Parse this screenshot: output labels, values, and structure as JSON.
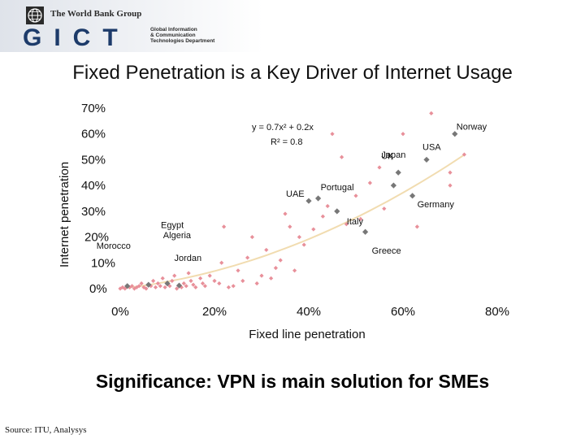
{
  "header": {
    "org_name": "The World Bank Group",
    "logo_text": "GICT",
    "subtitle_lines": [
      "Global Information",
      "& Communication",
      "Technologies Department"
    ]
  },
  "footer": {
    "significance": "Significance: VPN is main solution for SMEs",
    "source": "Source: ITU, Analysys"
  },
  "chart_data": {
    "type": "scatter",
    "title": "Fixed Penetration is a Key Driver of Internet Usage",
    "xlabel": "Fixed line penetration",
    "ylabel": "Internet penetration",
    "xlim": [
      0,
      0.8
    ],
    "ylim": [
      0,
      0.7
    ],
    "x_ticks": [
      "0%",
      "20%",
      "40%",
      "60%",
      "80%"
    ],
    "y_ticks": [
      "0%",
      "10%",
      "20%",
      "30%",
      "40%",
      "50%",
      "60%",
      "70%"
    ],
    "trendline": {
      "equation": "y = 0.7x² + 0.2x",
      "r_squared": "R² = 0.8",
      "coefficients": [
        0.7,
        0.2
      ],
      "color": "#f1dcb0"
    },
    "grid": false,
    "highlight_color": "#777777",
    "other_color": "#e8909a",
    "highlighted": [
      {
        "label": "Morocco",
        "x": 0.015,
        "y": 0.01
      },
      {
        "label": "Algeria",
        "x": 0.06,
        "y": 0.015
      },
      {
        "label": "Egypt",
        "x": 0.1,
        "y": 0.02
      },
      {
        "label": "Jordan",
        "x": 0.125,
        "y": 0.012
      },
      {
        "label": "UAE",
        "x": 0.4,
        "y": 0.34
      },
      {
        "label": "Portugal",
        "x": 0.42,
        "y": 0.35
      },
      {
        "label": "Italy",
        "x": 0.46,
        "y": 0.3
      },
      {
        "label": "Greece",
        "x": 0.52,
        "y": 0.22
      },
      {
        "label": "Germany",
        "x": 0.62,
        "y": 0.36
      },
      {
        "label": "UK",
        "x": 0.59,
        "y": 0.45
      },
      {
        "label": "Japan",
        "x": 0.58,
        "y": 0.4
      },
      {
        "label": "USA",
        "x": 0.65,
        "y": 0.5
      },
      {
        "label": "Norway",
        "x": 0.71,
        "y": 0.6
      }
    ],
    "others": [
      {
        "x": 0.0,
        "y": 0.0
      },
      {
        "x": 0.005,
        "y": 0.005
      },
      {
        "x": 0.01,
        "y": 0.0
      },
      {
        "x": 0.02,
        "y": 0.005
      },
      {
        "x": 0.025,
        "y": 0.01
      },
      {
        "x": 0.03,
        "y": 0.0
      },
      {
        "x": 0.035,
        "y": 0.005
      },
      {
        "x": 0.04,
        "y": 0.01
      },
      {
        "x": 0.045,
        "y": 0.02
      },
      {
        "x": 0.05,
        "y": 0.005
      },
      {
        "x": 0.055,
        "y": 0.0
      },
      {
        "x": 0.065,
        "y": 0.01
      },
      {
        "x": 0.07,
        "y": 0.03
      },
      {
        "x": 0.075,
        "y": 0.005
      },
      {
        "x": 0.08,
        "y": 0.02
      },
      {
        "x": 0.085,
        "y": 0.01
      },
      {
        "x": 0.09,
        "y": 0.04
      },
      {
        "x": 0.095,
        "y": 0.005
      },
      {
        "x": 0.105,
        "y": 0.01
      },
      {
        "x": 0.11,
        "y": 0.03
      },
      {
        "x": 0.115,
        "y": 0.05
      },
      {
        "x": 0.12,
        "y": 0.0
      },
      {
        "x": 0.13,
        "y": 0.005
      },
      {
        "x": 0.135,
        "y": 0.02
      },
      {
        "x": 0.14,
        "y": 0.01
      },
      {
        "x": 0.145,
        "y": 0.06
      },
      {
        "x": 0.15,
        "y": 0.03
      },
      {
        "x": 0.155,
        "y": 0.015
      },
      {
        "x": 0.16,
        "y": 0.005
      },
      {
        "x": 0.17,
        "y": 0.04
      },
      {
        "x": 0.175,
        "y": 0.02
      },
      {
        "x": 0.18,
        "y": 0.01
      },
      {
        "x": 0.19,
        "y": 0.05
      },
      {
        "x": 0.2,
        "y": 0.03
      },
      {
        "x": 0.21,
        "y": 0.02
      },
      {
        "x": 0.215,
        "y": 0.1
      },
      {
        "x": 0.22,
        "y": 0.24
      },
      {
        "x": 0.23,
        "y": 0.005
      },
      {
        "x": 0.24,
        "y": 0.01
      },
      {
        "x": 0.25,
        "y": 0.07
      },
      {
        "x": 0.26,
        "y": 0.03
      },
      {
        "x": 0.27,
        "y": 0.12
      },
      {
        "x": 0.28,
        "y": 0.2
      },
      {
        "x": 0.29,
        "y": 0.02
      },
      {
        "x": 0.3,
        "y": 0.05
      },
      {
        "x": 0.31,
        "y": 0.15
      },
      {
        "x": 0.32,
        "y": 0.04
      },
      {
        "x": 0.33,
        "y": 0.08
      },
      {
        "x": 0.34,
        "y": 0.11
      },
      {
        "x": 0.35,
        "y": 0.29
      },
      {
        "x": 0.36,
        "y": 0.24
      },
      {
        "x": 0.37,
        "y": 0.07
      },
      {
        "x": 0.38,
        "y": 0.2
      },
      {
        "x": 0.39,
        "y": 0.17
      },
      {
        "x": 0.41,
        "y": 0.23
      },
      {
        "x": 0.43,
        "y": 0.28
      },
      {
        "x": 0.44,
        "y": 0.32
      },
      {
        "x": 0.45,
        "y": 0.6
      },
      {
        "x": 0.47,
        "y": 0.51
      },
      {
        "x": 0.48,
        "y": 0.25
      },
      {
        "x": 0.5,
        "y": 0.36
      },
      {
        "x": 0.51,
        "y": 0.27
      },
      {
        "x": 0.53,
        "y": 0.41
      },
      {
        "x": 0.55,
        "y": 0.47
      },
      {
        "x": 0.56,
        "y": 0.31
      },
      {
        "x": 0.6,
        "y": 0.6
      },
      {
        "x": 0.63,
        "y": 0.24
      },
      {
        "x": 0.66,
        "y": 0.68
      },
      {
        "x": 0.7,
        "y": 0.45
      },
      {
        "x": 0.7,
        "y": 0.4
      },
      {
        "x": 0.73,
        "y": 0.52
      }
    ]
  }
}
